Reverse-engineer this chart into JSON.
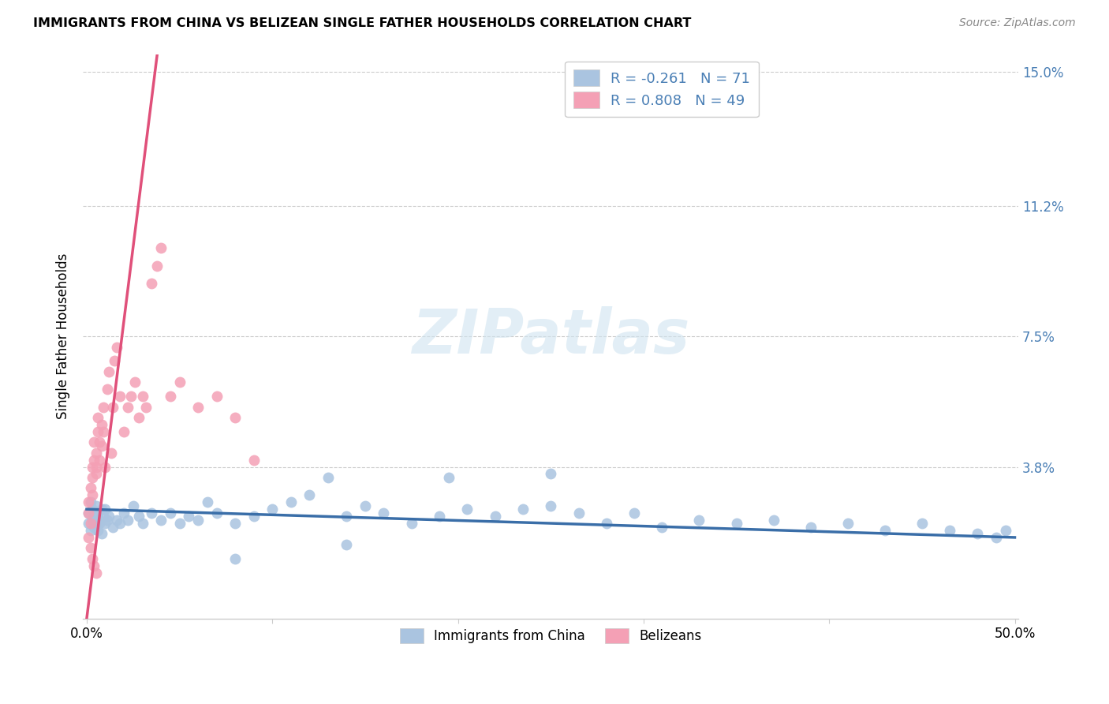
{
  "title": "IMMIGRANTS FROM CHINA VS BELIZEAN SINGLE FATHER HOUSEHOLDS CORRELATION CHART",
  "source": "Source: ZipAtlas.com",
  "xlabel_blue": "Immigrants from China",
  "xlabel_pink": "Belizeans",
  "ylabel": "Single Father Households",
  "xlim": [
    -0.002,
    0.502
  ],
  "ylim": [
    -0.005,
    0.155
  ],
  "ytick_positions": [
    0.038,
    0.075,
    0.112,
    0.15
  ],
  "ytick_labels": [
    "3.8%",
    "7.5%",
    "11.2%",
    "15.0%"
  ],
  "xtick_positions": [
    0.0,
    0.1,
    0.2,
    0.3,
    0.4,
    0.5
  ],
  "xtick_labels": [
    "0.0%",
    "",
    "",
    "",
    "",
    "50.0%"
  ],
  "blue_R": -0.261,
  "blue_N": 71,
  "pink_R": 0.808,
  "pink_N": 49,
  "blue_color": "#aac4e0",
  "pink_color": "#f4a0b5",
  "blue_line_color": "#3a6ea8",
  "pink_line_color": "#e0507a",
  "watermark_text": "ZIPatlas",
  "blue_line_x": [
    0.0,
    0.5
  ],
  "blue_line_y": [
    0.026,
    0.018
  ],
  "pink_line_x": [
    0.0,
    0.038
  ],
  "pink_line_y": [
    -0.005,
    0.155
  ],
  "blue_scatter_x": [
    0.001,
    0.001,
    0.002,
    0.002,
    0.003,
    0.003,
    0.004,
    0.004,
    0.005,
    0.005,
    0.006,
    0.006,
    0.007,
    0.007,
    0.008,
    0.008,
    0.009,
    0.01,
    0.01,
    0.011,
    0.012,
    0.014,
    0.016,
    0.018,
    0.02,
    0.022,
    0.025,
    0.028,
    0.03,
    0.035,
    0.04,
    0.045,
    0.05,
    0.055,
    0.06,
    0.065,
    0.07,
    0.08,
    0.09,
    0.1,
    0.11,
    0.12,
    0.13,
    0.14,
    0.15,
    0.16,
    0.175,
    0.19,
    0.205,
    0.22,
    0.235,
    0.25,
    0.265,
    0.28,
    0.295,
    0.31,
    0.33,
    0.35,
    0.37,
    0.39,
    0.41,
    0.43,
    0.45,
    0.465,
    0.48,
    0.49,
    0.495,
    0.25,
    0.195,
    0.14,
    0.08
  ],
  "blue_scatter_y": [
    0.025,
    0.022,
    0.028,
    0.02,
    0.026,
    0.023,
    0.024,
    0.021,
    0.027,
    0.022,
    0.025,
    0.02,
    0.023,
    0.022,
    0.026,
    0.019,
    0.024,
    0.022,
    0.026,
    0.023,
    0.024,
    0.021,
    0.023,
    0.022,
    0.025,
    0.023,
    0.027,
    0.024,
    0.022,
    0.025,
    0.023,
    0.025,
    0.022,
    0.024,
    0.023,
    0.028,
    0.025,
    0.022,
    0.024,
    0.026,
    0.028,
    0.03,
    0.035,
    0.024,
    0.027,
    0.025,
    0.022,
    0.024,
    0.026,
    0.024,
    0.026,
    0.027,
    0.025,
    0.022,
    0.025,
    0.021,
    0.023,
    0.022,
    0.023,
    0.021,
    0.022,
    0.02,
    0.022,
    0.02,
    0.019,
    0.018,
    0.02,
    0.036,
    0.035,
    0.016,
    0.012
  ],
  "pink_scatter_x": [
    0.001,
    0.001,
    0.002,
    0.002,
    0.003,
    0.003,
    0.003,
    0.004,
    0.004,
    0.005,
    0.005,
    0.005,
    0.006,
    0.006,
    0.007,
    0.007,
    0.008,
    0.008,
    0.009,
    0.009,
    0.01,
    0.011,
    0.012,
    0.013,
    0.014,
    0.015,
    0.016,
    0.018,
    0.02,
    0.022,
    0.024,
    0.026,
    0.028,
    0.03,
    0.032,
    0.035,
    0.038,
    0.04,
    0.045,
    0.05,
    0.06,
    0.07,
    0.08,
    0.09,
    0.001,
    0.002,
    0.003,
    0.004,
    0.005
  ],
  "pink_scatter_y": [
    0.028,
    0.025,
    0.032,
    0.022,
    0.035,
    0.038,
    0.03,
    0.04,
    0.045,
    0.038,
    0.042,
    0.036,
    0.048,
    0.052,
    0.045,
    0.04,
    0.05,
    0.044,
    0.055,
    0.048,
    0.038,
    0.06,
    0.065,
    0.042,
    0.055,
    0.068,
    0.072,
    0.058,
    0.048,
    0.055,
    0.058,
    0.062,
    0.052,
    0.058,
    0.055,
    0.09,
    0.095,
    0.1,
    0.058,
    0.062,
    0.055,
    0.058,
    0.052,
    0.04,
    0.018,
    0.015,
    0.012,
    0.01,
    0.008
  ]
}
